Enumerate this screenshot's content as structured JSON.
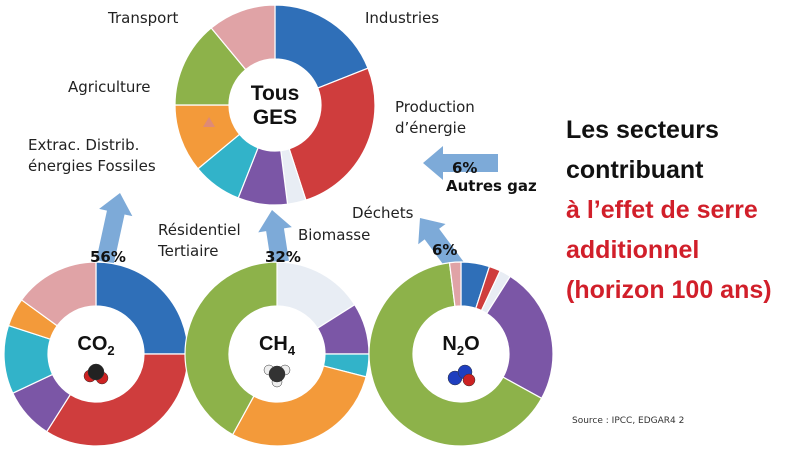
{
  "headline": {
    "lines": [
      {
        "text": "Les secteurs",
        "color": "#111111"
      },
      {
        "text": "contribuant",
        "color": "#111111"
      },
      {
        "text": "à l’effet de serre",
        "color": "#d11f2a"
      },
      {
        "text": "additionnel",
        "color": "#d11f2a"
      },
      {
        "text": "(horizon 100 ans)",
        "color": "#d11f2a"
      }
    ]
  },
  "source": "Source : IPCC, EDGAR4 2",
  "arrow_labels": {
    "co2": "56%",
    "ch4": "32%",
    "n2o": "6%",
    "other_pct": "6%",
    "other_name": "Autres gaz"
  },
  "sector_labels": {
    "transport": "Transport",
    "industries": "Industries",
    "agriculture": "Agriculture",
    "production": "Production\nd’énergie",
    "extraction": "Extrac. Distrib.\nénergies Fossiles",
    "residentiel": "Résidentiel\nTertiaire",
    "dechets": "Déchets",
    "biomasse": "Biomasse"
  },
  "colors": {
    "industries": "#2f6fb8",
    "production": "#cf3d3d",
    "dechets": "#e8edf4",
    "biomasse": "#7b56a6",
    "residentiel": "#32b3c9",
    "extraction": "#f39a3a",
    "agriculture": "#8db24a",
    "transport": "#e0a3a6",
    "arrow": "#6fa1d4"
  },
  "chart_data": [
    {
      "type": "pie",
      "title": "Tous GES",
      "gas": "all",
      "slices": [
        {
          "sector": "Industries",
          "value": 19
        },
        {
          "sector": "Production d’énergie",
          "value": 26
        },
        {
          "sector": "Déchets",
          "value": 3
        },
        {
          "sector": "Biomasse",
          "value": 8
        },
        {
          "sector": "Résidentiel Tertiaire",
          "value": 8
        },
        {
          "sector": "Extrac. Distrib. énergies Fossiles",
          "value": 11
        },
        {
          "sector": "Agriculture",
          "value": 14
        },
        {
          "sector": "Transport",
          "value": 11
        }
      ]
    },
    {
      "type": "pie",
      "title": "CO2",
      "share": "56%",
      "slices": [
        {
          "sector": "Industries",
          "value": 25
        },
        {
          "sector": "Production d’énergie",
          "value": 34
        },
        {
          "sector": "Biomasse",
          "value": 9
        },
        {
          "sector": "Résidentiel Tertiaire",
          "value": 12
        },
        {
          "sector": "Extrac. Distrib. énergies Fossiles",
          "value": 5
        },
        {
          "sector": "Transport",
          "value": 15
        }
      ]
    },
    {
      "type": "pie",
      "title": "CH4",
      "share": "32%",
      "slices": [
        {
          "sector": "Déchets",
          "value": 16
        },
        {
          "sector": "Biomasse",
          "value": 9
        },
        {
          "sector": "Résidentiel Tertiaire",
          "value": 4
        },
        {
          "sector": "Extrac. Distrib. énergies Fossiles",
          "value": 29
        },
        {
          "sector": "Agriculture",
          "value": 42
        }
      ]
    },
    {
      "type": "pie",
      "title": "N2O",
      "share": "6%",
      "slices": [
        {
          "sector": "Industries",
          "value": 5
        },
        {
          "sector": "Production d’énergie",
          "value": 2
        },
        {
          "sector": "Déchets",
          "value": 2
        },
        {
          "sector": "Biomasse",
          "value": 24
        },
        {
          "sector": "Agriculture",
          "value": 65
        },
        {
          "sector": "Transport",
          "value": 2
        }
      ]
    }
  ]
}
